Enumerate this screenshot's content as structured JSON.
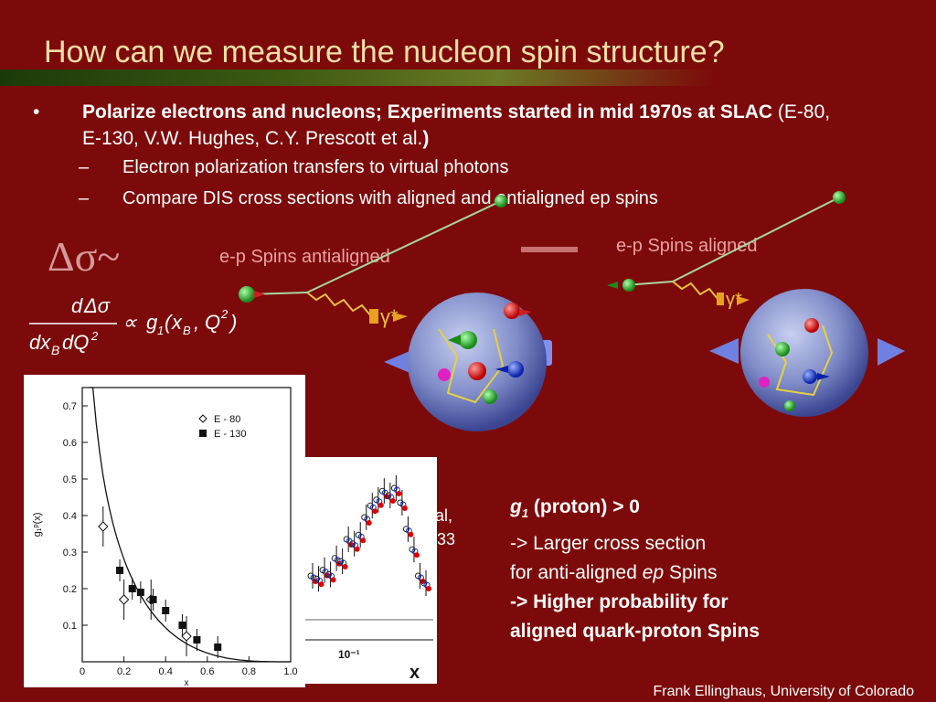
{
  "slide": {
    "title": "How can we measure the nucleon spin structure?",
    "bullet_main_bold": "Polarize electrons and nucleons; Experiments started in mid 1970s at SLAC",
    "bullet_main_rest": " (E-80, E-130, V.W. Hughes, C.Y. Prescott et al.",
    "bullet_main_close": ")",
    "sub1": "Electron polarization transfers to virtual photons",
    "sub2": "Compare DIS cross sections with aligned and antialigned ep spins",
    "delta_sigma": "Δσ~",
    "label_antialigned": "e-p Spins antialigned",
    "label_aligned": "e-p Spins aligned",
    "photon_label": "γ*",
    "g1_line1_sym": "g",
    "g1_line1_sub": "1",
    "g1_line1_rest": " (proton) > 0",
    "g1_line2": "-> Larger cross section",
    "g1_line3_a": "for anti-aligned ",
    "g1_line3_ep": "ep",
    "g1_line3_b": " Spins",
    "g1_line4": "-> Higher probability for",
    "g1_line5": "aligned quark-proton Spins",
    "partial_text_1": "al,",
    "partial_text_2": "33",
    "footer": "Frank Ellinghaus, University of Colorado",
    "bullet_symbol": "•",
    "dash_symbol": "–"
  },
  "chart_data": [
    {
      "type": "scatter",
      "title": "",
      "xlabel": "x",
      "ylabel": "g₁ᵖ(x)",
      "xlim": [
        0,
        1.0
      ],
      "ylim": [
        0,
        0.75
      ],
      "x_ticks": [
        "0",
        "0.2",
        "0.4",
        "0.6",
        "0.8",
        "1.0"
      ],
      "y_ticks": [
        "0.1",
        "0.2",
        "0.3",
        "0.4",
        "0.5",
        "0.6",
        "0.7"
      ],
      "legend": [
        "E - 80",
        "E - 130"
      ],
      "legend_position": "top-right",
      "series": [
        {
          "name": "E - 80",
          "marker": "diamond-open",
          "x": [
            0.1,
            0.2,
            0.33,
            0.5
          ],
          "y": [
            0.37,
            0.17,
            0.17,
            0.07
          ]
        },
        {
          "name": "E - 130",
          "marker": "square-filled",
          "x": [
            0.18,
            0.24,
            0.28,
            0.34,
            0.4,
            0.48,
            0.55,
            0.65
          ],
          "y": [
            0.25,
            0.2,
            0.19,
            0.17,
            0.14,
            0.1,
            0.06,
            0.04
          ]
        }
      ],
      "curve_label": ""
    },
    {
      "type": "scatter",
      "title": "",
      "xlabel": "x",
      "x_tick_label": "10⁻¹",
      "series_colors": [
        "#222222",
        "#1030d0",
        "#e00000"
      ],
      "y_points": [
        0.3,
        0.28,
        0.34,
        0.31,
        0.42,
        0.4,
        0.55,
        0.52,
        0.58,
        0.7,
        0.78,
        0.82,
        0.88,
        0.85,
        0.9,
        0.8,
        0.62,
        0.48,
        0.3,
        0.25
      ]
    }
  ]
}
